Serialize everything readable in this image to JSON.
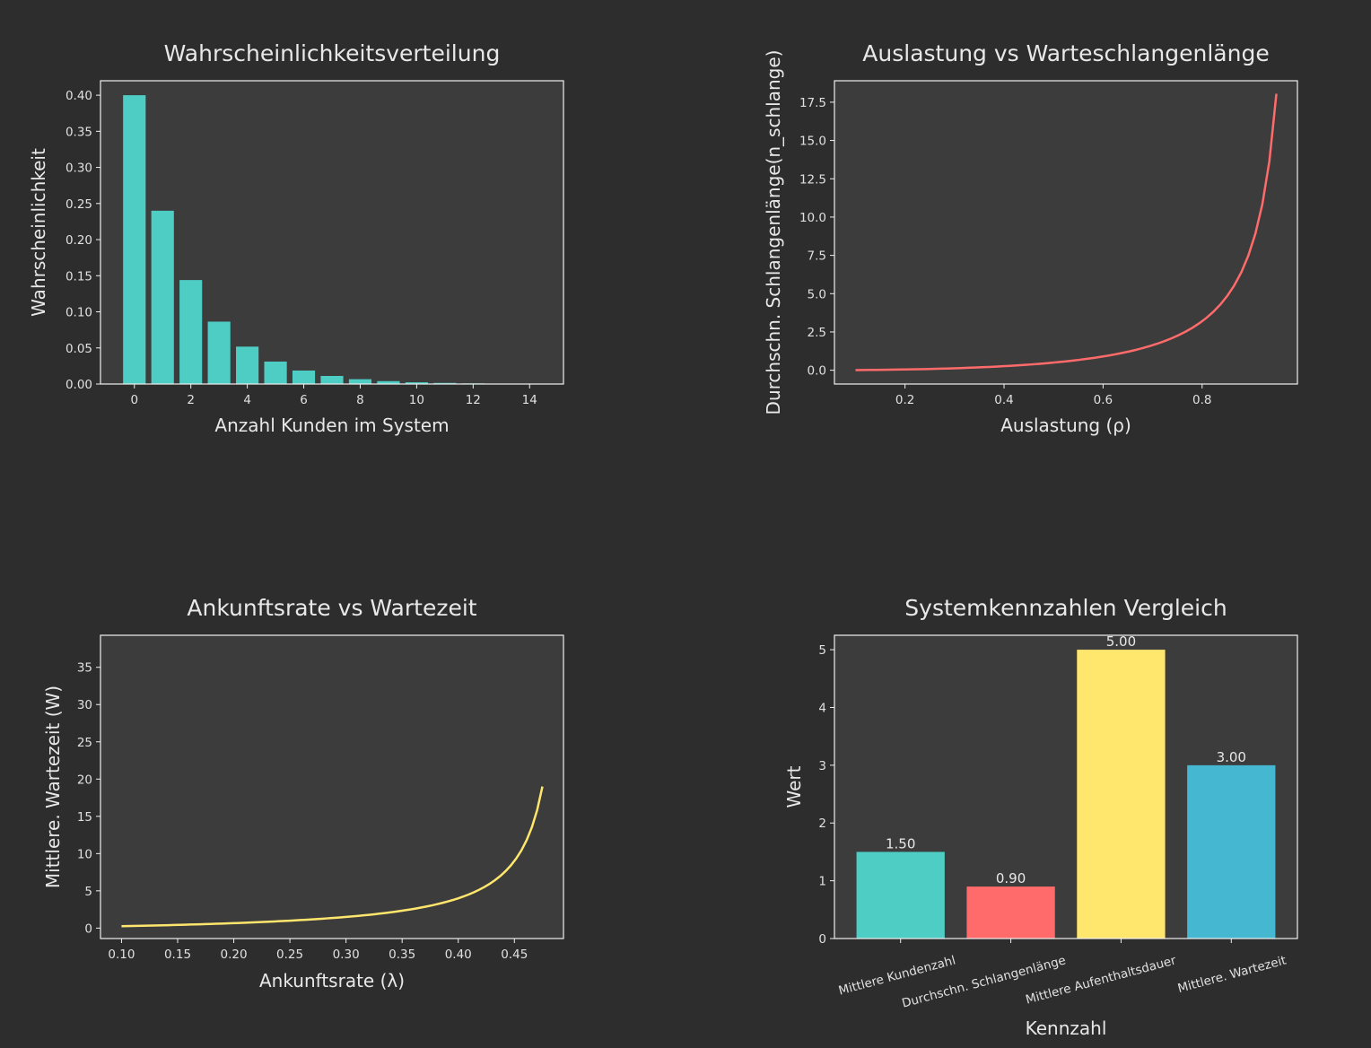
{
  "colors": {
    "background": "#2d2d2d",
    "axes_face": "#3c3c3c",
    "spine": "#f0f0f0",
    "text": "#e8e8e8",
    "teal": "#4ecdc4",
    "red": "#ff6b6b",
    "yellow": "#ffe66d",
    "blue": "#45b7d1"
  },
  "chart_data": [
    {
      "type": "bar",
      "title": "Wahrscheinlichkeitsverteilung",
      "xlabel": "Anzahl Kunden im System",
      "ylabel": "Wahrscheinlichkeit",
      "x": [
        0,
        1,
        2,
        3,
        4,
        5,
        6,
        7,
        8,
        9,
        10,
        11,
        12,
        13,
        14
      ],
      "values": [
        0.4,
        0.24,
        0.144,
        0.0864,
        0.0518,
        0.0311,
        0.0187,
        0.0112,
        0.0067,
        0.004,
        0.0024,
        0.0015,
        0.0009,
        0.0005,
        0.0003
      ],
      "xlim": [
        -1.2,
        15.2
      ],
      "ylim": [
        0,
        0.42
      ],
      "xticks": [
        0,
        2,
        4,
        6,
        8,
        10,
        12,
        14
      ],
      "yticks": [
        "0.00",
        "0.05",
        "0.10",
        "0.15",
        "0.20",
        "0.25",
        "0.30",
        "0.35",
        "0.40"
      ],
      "color": "#4ecdc4",
      "grid": false
    },
    {
      "type": "line",
      "title": "Auslastung vs Warteschlangenlänge",
      "xlabel": "Auslastung (ρ)",
      "ylabel": "Durchschn. Schlangenlänge(n_schlange)",
      "x_range": [
        0.1,
        0.95
      ],
      "formula_points": "rho^2/(1-rho)",
      "xlim": [
        0.0575,
        0.9925
      ],
      "ylim": [
        -0.9,
        18.9
      ],
      "xticks": [
        "0.2",
        "0.4",
        "0.6",
        "0.8"
      ],
      "yticks": [
        "0.0",
        "2.5",
        "5.0",
        "7.5",
        "10.0",
        "12.5",
        "15.0",
        "17.5"
      ],
      "color": "#ff6b6b",
      "grid": false
    },
    {
      "type": "line",
      "title": "Ankunftsrate vs Wartezeit",
      "xlabel": "Ankunftsrate (λ)",
      "ylabel": "Mittlere. Wartezeit (W)",
      "x_range": [
        0.1,
        0.475
      ],
      "formula_points": "1/(0.5-lambda)^... approx W = 1/(mu-lambda), mu=0.5",
      "xlim": [
        0.08125,
        0.49375
      ],
      "ylim": [
        -1.4,
        39.3
      ],
      "xticks": [
        "0.10",
        "0.15",
        "0.20",
        "0.25",
        "0.30",
        "0.35",
        "0.40",
        "0.45"
      ],
      "yticks": [
        "0",
        "5",
        "10",
        "15",
        "20",
        "25",
        "30",
        "35"
      ],
      "color": "#ffe66d",
      "grid": false
    },
    {
      "type": "bar",
      "title": "Systemkennzahlen Vergleich",
      "xlabel": "Kennzahl",
      "ylabel": "Wert",
      "categories": [
        "Mittlere Kundenzahl",
        "Durchschn. Schlangenlänge",
        "Mittlere Aufenthaltsdauer",
        "Mittlere. Wartezeit"
      ],
      "values": [
        1.5,
        0.9,
        5.0,
        3.0
      ],
      "value_labels": [
        "1.50",
        "0.90",
        "5.00",
        "3.00"
      ],
      "colors": [
        "#4ecdc4",
        "#ff6b6b",
        "#ffe66d",
        "#45b7d1"
      ],
      "ylim": [
        0,
        5.25
      ],
      "yticks": [
        "0",
        "1",
        "2",
        "3",
        "4",
        "5"
      ],
      "grid": false
    }
  ]
}
